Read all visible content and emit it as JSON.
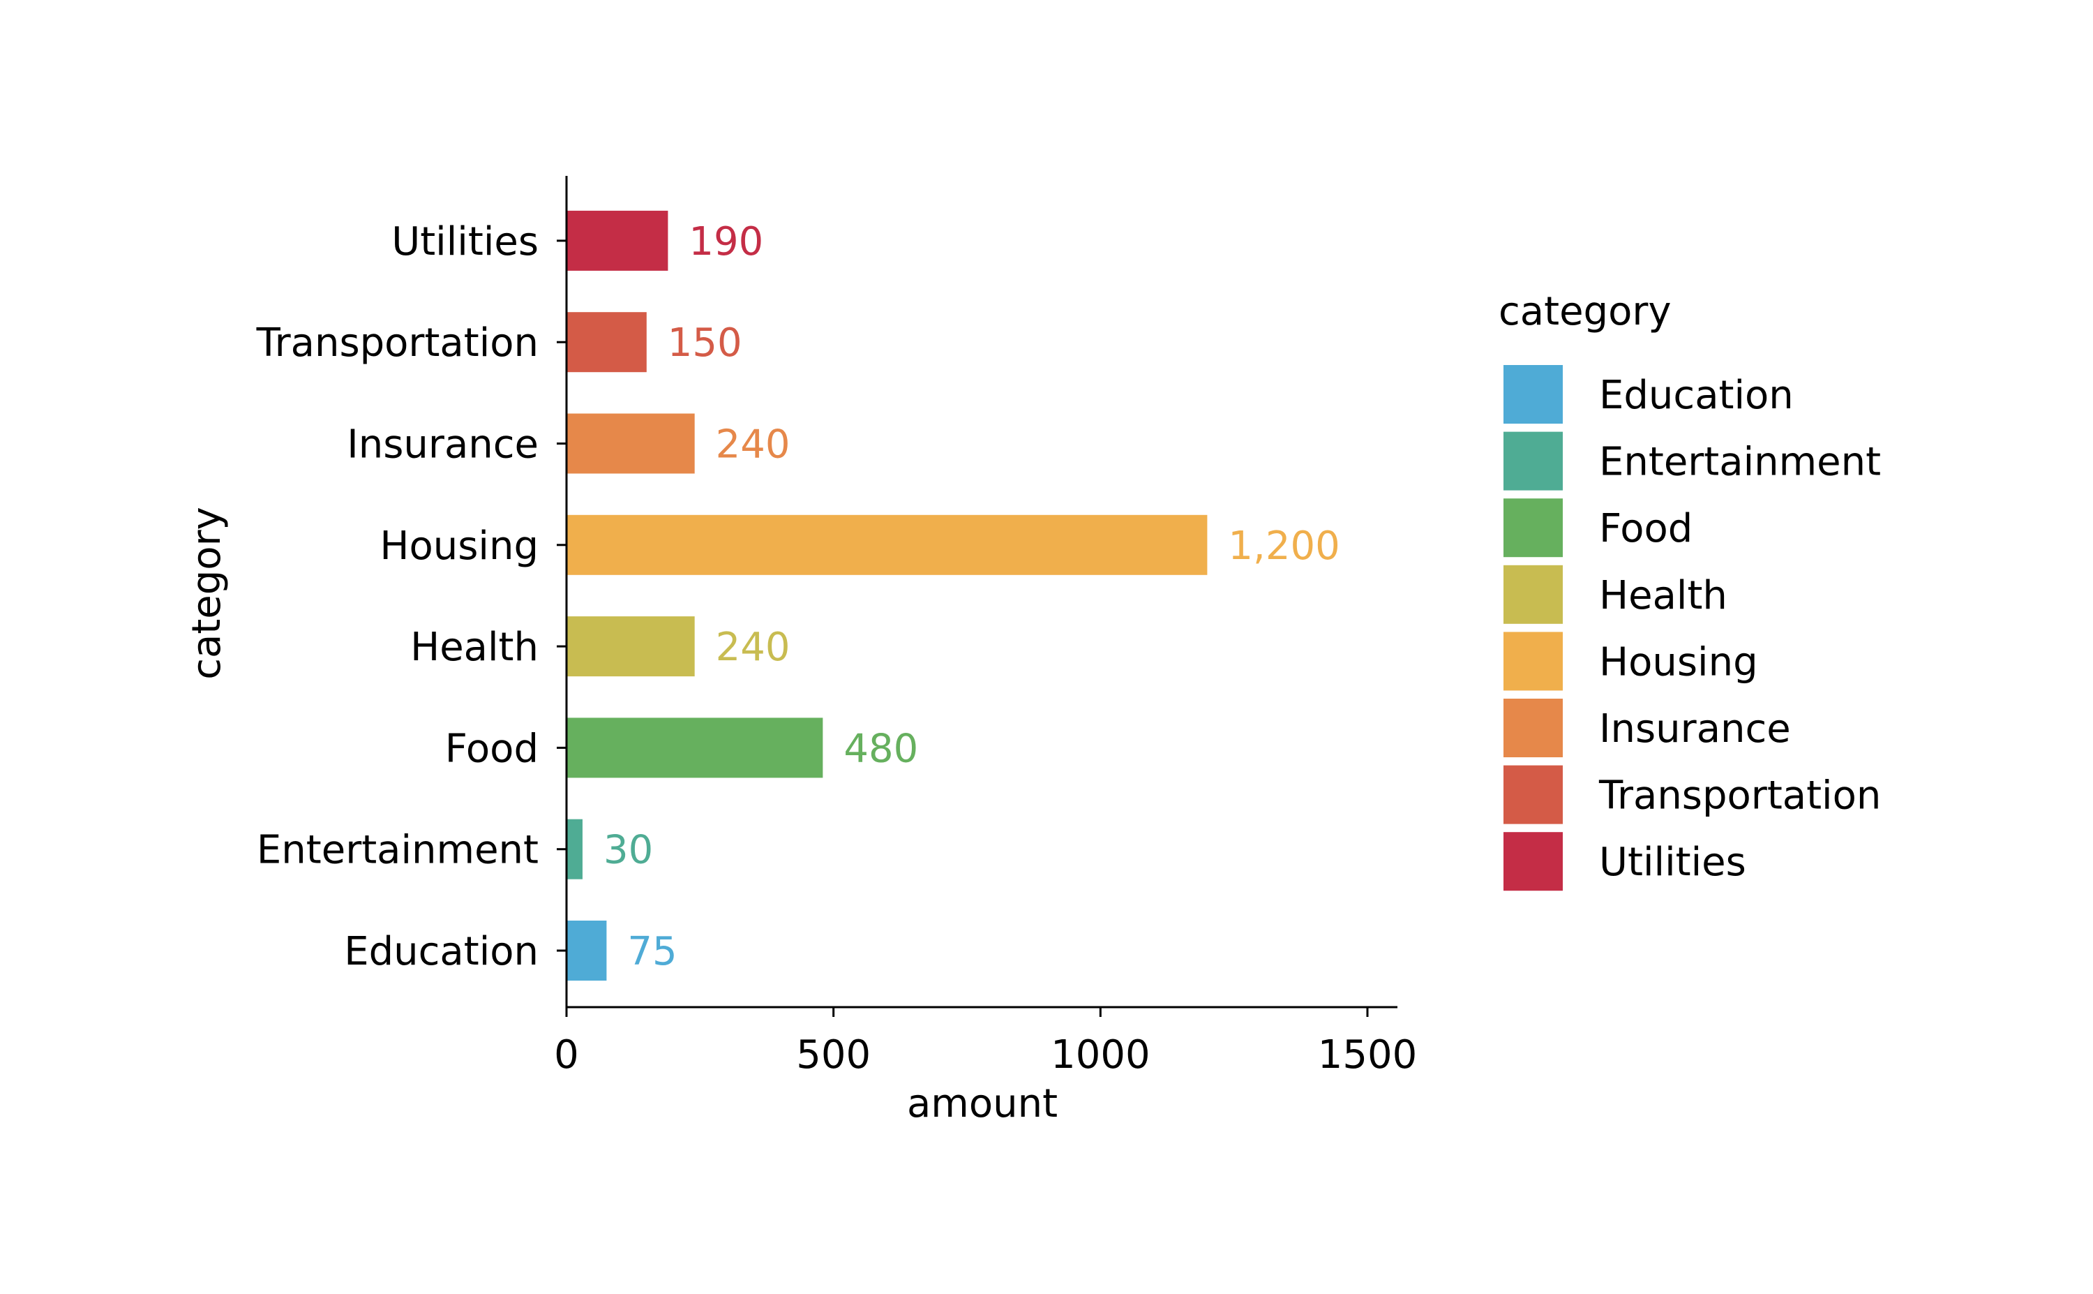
{
  "chart_data": {
    "type": "bar",
    "orientation": "horizontal",
    "xlabel": "amount",
    "ylabel": "category",
    "xlim": [
      0,
      1560
    ],
    "xticks": [
      0,
      500,
      1000,
      1500
    ],
    "xtick_labels": [
      "0",
      "500",
      "1000",
      "1500"
    ],
    "grid": false,
    "categories": [
      "Education",
      "Entertainment",
      "Food",
      "Health",
      "Housing",
      "Insurance",
      "Transportation",
      "Utilities"
    ],
    "values": [
      75,
      30,
      480,
      240,
      1200,
      240,
      150,
      190
    ],
    "value_labels": [
      "75",
      "30",
      "480",
      "240",
      "1,200",
      "240",
      "150",
      "190"
    ],
    "colors": [
      "#4fabd6",
      "#4fac94",
      "#66b05e",
      "#c8bc51",
      "#f0af4c",
      "#e6884a",
      "#d45b47",
      "#c42d46"
    ],
    "legend": {
      "title": "category",
      "placement": "right",
      "items": [
        "Education",
        "Entertainment",
        "Food",
        "Health",
        "Housing",
        "Insurance",
        "Transportation",
        "Utilities"
      ]
    }
  }
}
